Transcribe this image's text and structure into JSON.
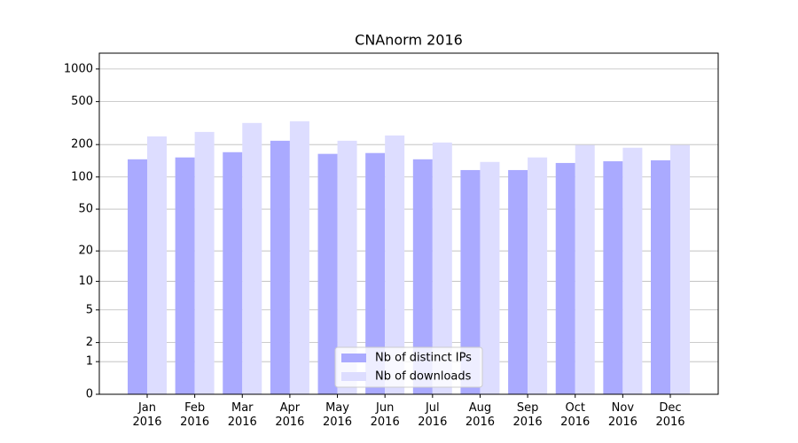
{
  "chart_data": {
    "type": "bar",
    "title": "CNAnorm 2016",
    "categories": [
      "Jan\n2016",
      "Feb\n2016",
      "Mar\n2016",
      "Apr\n2016",
      "May\n2016",
      "Jun\n2016",
      "Jul\n2016",
      "Aug\n2016",
      "Sep\n2016",
      "Oct\n2016",
      "Nov\n2016",
      "Dec\n2016"
    ],
    "series": [
      {
        "name": "Nb of distinct IPs",
        "color": "#aaaaff",
        "values": [
          146,
          152,
          170,
          217,
          164,
          167,
          146,
          116,
          116,
          135,
          140,
          143
        ]
      },
      {
        "name": "Nb of downloads",
        "color": "#ddddff",
        "values": [
          238,
          262,
          317,
          329,
          217,
          243,
          209,
          138,
          152,
          198,
          187,
          198
        ]
      }
    ],
    "yscale": "log1p",
    "ylim": [
      0,
      1400
    ],
    "yticks": [
      0,
      1,
      2,
      5,
      10,
      20,
      50,
      100,
      200,
      500,
      1000
    ],
    "grid": true,
    "legend": "lower center"
  }
}
